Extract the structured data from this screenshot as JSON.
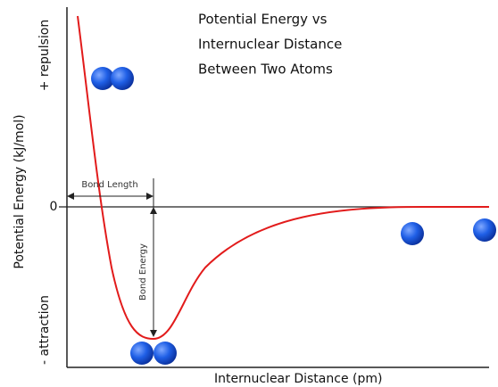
{
  "title": {
    "lines": [
      "Potential Energy vs",
      "Internuclear Distance",
      "Between Two Atoms"
    ]
  },
  "y_axis": {
    "label": "Potential Energy (kJ/mol)",
    "top_label": "+ repulsion",
    "bottom_label": "- attraction",
    "zero_label": "0"
  },
  "x_axis": {
    "label": "Internuclear Distance (pm)"
  },
  "annotations": {
    "bond_length": "Bond Length",
    "bond_energy": "Bond Energy"
  }
}
